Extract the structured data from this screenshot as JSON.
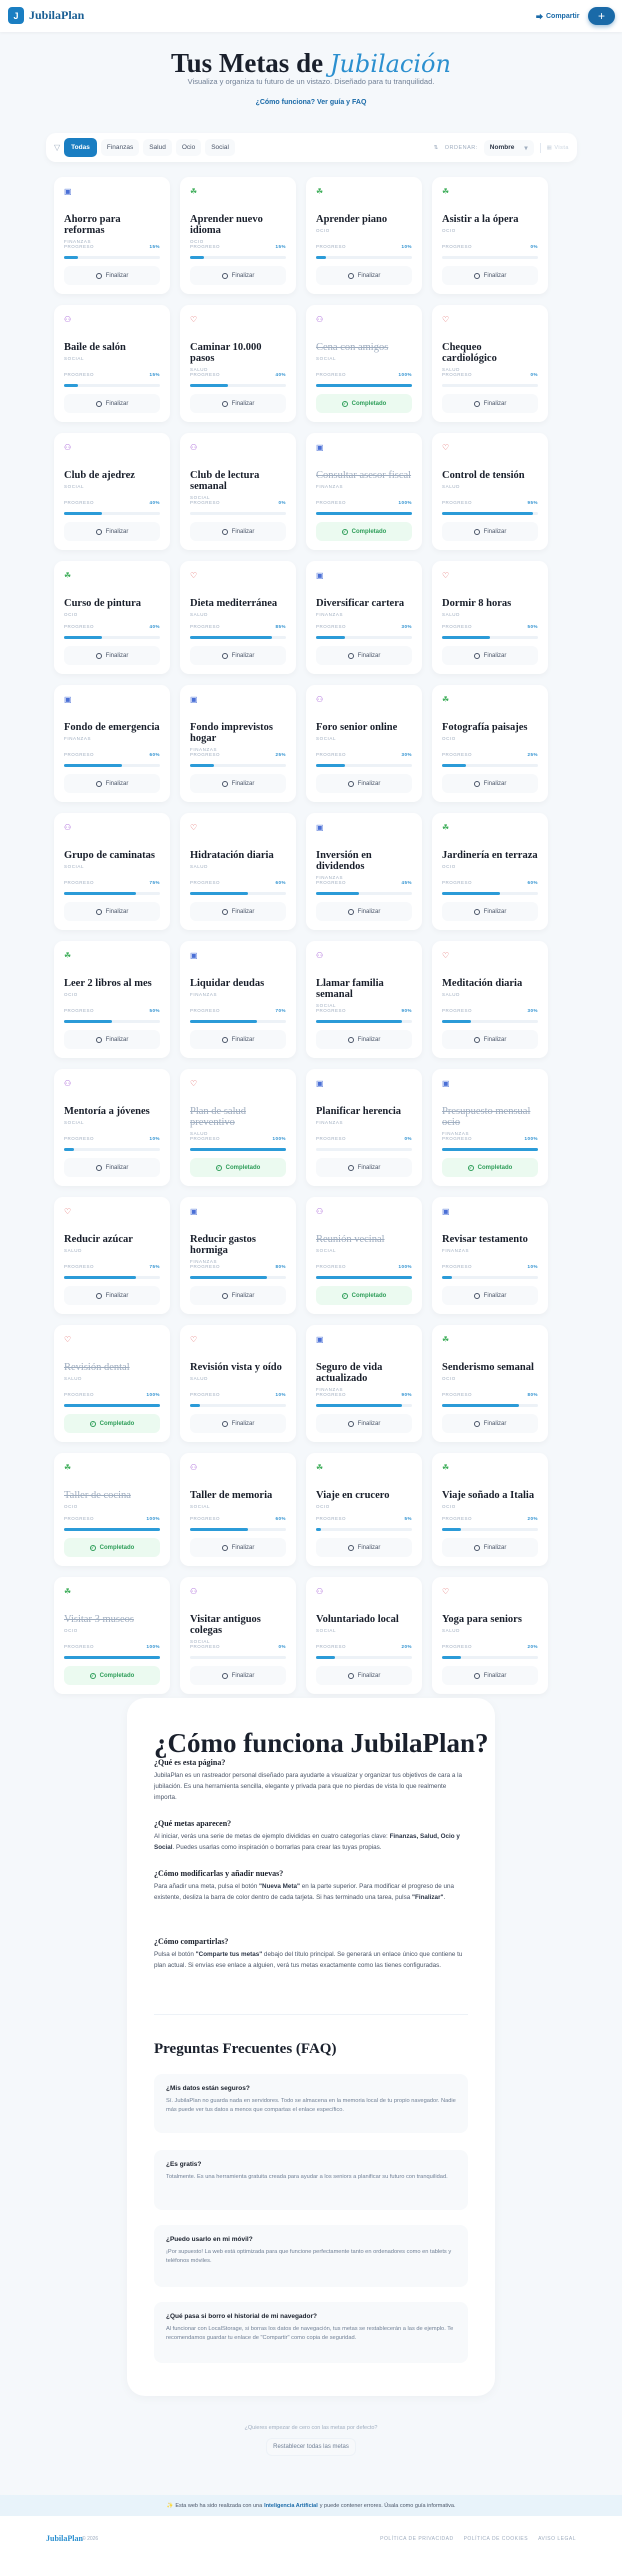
{
  "header": {
    "logo_mark": "J",
    "logo_text": "JubilaPlan",
    "share_label": "Compartir",
    "add_label": "+"
  },
  "hero": {
    "title_main": "Tus Metas de",
    "title_accent": "Jubilación",
    "subtitle": "Visualiza y organiza tu futuro de un vistazo. Diseñado para tu tranquilidad.",
    "link": "¿Cómo funciona? Ver guía y FAQ"
  },
  "filters": {
    "items": [
      "Todas",
      "Finanzas",
      "Salud",
      "Ocio",
      "Social"
    ],
    "active": "Todas",
    "sort_label": "ORDENAR:",
    "sort_value": "Nombre",
    "view_label": "Vista"
  },
  "card_labels": {
    "progress": "PROGRESO",
    "finish": "Finalizar",
    "completed": "Completado"
  },
  "colors": {
    "primary": "#1a7ec2",
    "bar": "#2b9bd8",
    "completed": "#2f9e5a",
    "finanzas": "#4a6fd6",
    "salud": "#e05a5a",
    "ocio": "#3fae5a",
    "social": "#a35ad6"
  },
  "category_icons": {
    "FINANZAS": "wallet-icon",
    "SALUD": "heart-icon",
    "OCIO": "plant-icon",
    "SOCIAL": "people-icon"
  },
  "goals": [
    {
      "title": "Ahorro para reformas",
      "category": "FINANZAS",
      "progress": 15
    },
    {
      "title": "Aprender nuevo idioma",
      "category": "OCIO",
      "progress": 15
    },
    {
      "title": "Aprender piano",
      "category": "OCIO",
      "progress": 10
    },
    {
      "title": "Asistir a la ópera",
      "category": "OCIO",
      "progress": 0
    },
    {
      "title": "Baile de salón",
      "category": "SOCIAL",
      "progress": 15
    },
    {
      "title": "Caminar 10.000 pasos",
      "category": "SALUD",
      "progress": 40
    },
    {
      "title": "Cena con amigos",
      "category": "SOCIAL",
      "progress": 100
    },
    {
      "title": "Chequeo cardiológico",
      "category": "SALUD",
      "progress": 0
    },
    {
      "title": "Club de ajedrez",
      "category": "SOCIAL",
      "progress": 40
    },
    {
      "title": "Club de lectura semanal",
      "category": "SOCIAL",
      "progress": 0
    },
    {
      "title": "Consultar asesor fiscal",
      "category": "FINANZAS",
      "progress": 100
    },
    {
      "title": "Control de tensión",
      "category": "SALUD",
      "progress": 95
    },
    {
      "title": "Curso de pintura",
      "category": "OCIO",
      "progress": 40
    },
    {
      "title": "Dieta mediterránea",
      "category": "SALUD",
      "progress": 85
    },
    {
      "title": "Diversificar cartera",
      "category": "FINANZAS",
      "progress": 30
    },
    {
      "title": "Dormir 8 horas",
      "category": "SALUD",
      "progress": 50
    },
    {
      "title": "Fondo de emergencia",
      "category": "FINANZAS",
      "progress": 60
    },
    {
      "title": "Fondo imprevistos hogar",
      "category": "FINANZAS",
      "progress": 25
    },
    {
      "title": "Foro senior online",
      "category": "SOCIAL",
      "progress": 30
    },
    {
      "title": "Fotografía paisajes",
      "category": "OCIO",
      "progress": 25
    },
    {
      "title": "Grupo de caminatas",
      "category": "SOCIAL",
      "progress": 75
    },
    {
      "title": "Hidratación diaria",
      "category": "SALUD",
      "progress": 60
    },
    {
      "title": "Inversión en dividendos",
      "category": "FINANZAS",
      "progress": 45
    },
    {
      "title": "Jardinería en terraza",
      "category": "OCIO",
      "progress": 60
    },
    {
      "title": "Leer 2 libros al mes",
      "category": "OCIO",
      "progress": 50
    },
    {
      "title": "Liquidar deudas",
      "category": "FINANZAS",
      "progress": 70
    },
    {
      "title": "Llamar familia semanal",
      "category": "SOCIAL",
      "progress": 90
    },
    {
      "title": "Meditación diaria",
      "category": "SALUD",
      "progress": 30
    },
    {
      "title": "Mentoría a jóvenes",
      "category": "SOCIAL",
      "progress": 10
    },
    {
      "title": "Plan de salud preventivo",
      "category": "SALUD",
      "progress": 100
    },
    {
      "title": "Planificar herencia",
      "category": "FINANZAS",
      "progress": 0
    },
    {
      "title": "Presupuesto mensual ocio",
      "category": "FINANZAS",
      "progress": 100
    },
    {
      "title": "Reducir azúcar",
      "category": "SALUD",
      "progress": 75
    },
    {
      "title": "Reducir gastos hormiga",
      "category": "FINANZAS",
      "progress": 80
    },
    {
      "title": "Reunión vecinal",
      "category": "SOCIAL",
      "progress": 100
    },
    {
      "title": "Revisar testamento",
      "category": "FINANZAS",
      "progress": 10
    },
    {
      "title": "Revisión dental",
      "category": "SALUD",
      "progress": 100
    },
    {
      "title": "Revisión vista y oído",
      "category": "SALUD",
      "progress": 10
    },
    {
      "title": "Seguro de vida actualizado",
      "category": "FINANZAS",
      "progress": 90
    },
    {
      "title": "Senderismo semanal",
      "category": "OCIO",
      "progress": 80
    },
    {
      "title": "Taller de cocina",
      "category": "OCIO",
      "progress": 100
    },
    {
      "title": "Taller de memoria",
      "category": "SOCIAL",
      "progress": 60
    },
    {
      "title": "Viaje en crucero",
      "category": "OCIO",
      "progress": 5
    },
    {
      "title": "Viaje soñado a Italia",
      "category": "OCIO",
      "progress": 20
    },
    {
      "title": "Visitar 3 museos",
      "category": "OCIO",
      "progress": 100
    },
    {
      "title": "Visitar antiguos colegas",
      "category": "SOCIAL",
      "progress": 0
    },
    {
      "title": "Voluntariado local",
      "category": "SOCIAL",
      "progress": 20
    },
    {
      "title": "Yoga para seniors",
      "category": "SALUD",
      "progress": 20
    }
  ],
  "guide": {
    "title": "¿Cómo funciona JubilaPlan?",
    "sections": [
      {
        "q": "¿Qué es esta página?",
        "a": "JubilaPlan es un rastreador personal diseñado para ayudarte a visualizar y organizar tus objetivos de cara a la jubilación. Es una herramienta sencilla, elegante y privada para que no pierdas de vista lo que realmente importa."
      },
      {
        "q": "¿Qué metas aparecen?",
        "a_pre": "Al iniciar, verás una serie de metas de ejemplo divididas en cuatro categorías clave: ",
        "a_bold": "Finanzas, Salud, Ocio y Social",
        "a_post": ". Puedes usarlas como inspiración o borrarlas para crear las tuyas propias."
      },
      {
        "q": "¿Cómo modificarlas y añadir nuevas?",
        "a_pre": "Para añadir una meta, pulsa el botón ",
        "a_bold": "\"Nueva Meta\"",
        "a_mid": " en la parte superior. Para modificar el progreso de una existente, desliza la barra de color dentro de cada tarjeta. Si has terminado una tarea, pulsa ",
        "a_bold2": "\"Finalizar\"",
        "a_post": "."
      },
      {
        "q": "¿Cómo compartirlas?",
        "a_pre": "Pulsa el botón ",
        "a_bold": "\"Comparte tus metas\"",
        "a_post": " debajo del título principal. Se generará un enlace único que contiene tu plan actual. Si envías ese enlace a alguien, verá tus metas exactamente como las tienes configuradas."
      }
    ],
    "faq_title": "Preguntas Frecuentes (FAQ)",
    "faq": [
      {
        "q": "¿Mis datos están seguros?",
        "a": "Sí. JubilaPlan no guarda nada en servidores. Todo se almacena en la memoria local de tu propio navegador. Nadie más puede ver tus datos a menos que compartas el enlace específico."
      },
      {
        "q": "¿Es gratis?",
        "a": "Totalmente. Es una herramienta gratuita creada para ayudar a los seniors a planificar su futuro con tranquilidad."
      },
      {
        "q": "¿Puedo usarlo en mi móvil?",
        "a": "¡Por supuesto! La web está optimizada para que funcione perfectamente tanto en ordenadores como en tablets y teléfonos móviles."
      },
      {
        "q": "¿Qué pasa si borro el historial de mi navegador?",
        "a": "Al funcionar con LocalStorage, si borras los datos de navegación, tus metas se restablecerán a las de ejemplo. Te recomendamos guardar tu enlace de \"Compartir\" como copia de seguridad."
      }
    ]
  },
  "reset": {
    "question": "¿Quieres empezar de cero con las metas por defecto?",
    "button": "Restablecer todas las metas"
  },
  "ai_banner": {
    "icon": "✨",
    "pre": "Esta web ha sido realizada con una",
    "bold": "Inteligencia Artificial",
    "post": "y puede contener errores. Úsala como guía informativa."
  },
  "footer": {
    "logo": "JubilaPlan",
    "copyright": "© 2026",
    "links": [
      "POLÍTICA DE PRIVACIDAD",
      "POLÍTICA DE COOKIES",
      "AVISO LEGAL"
    ]
  }
}
